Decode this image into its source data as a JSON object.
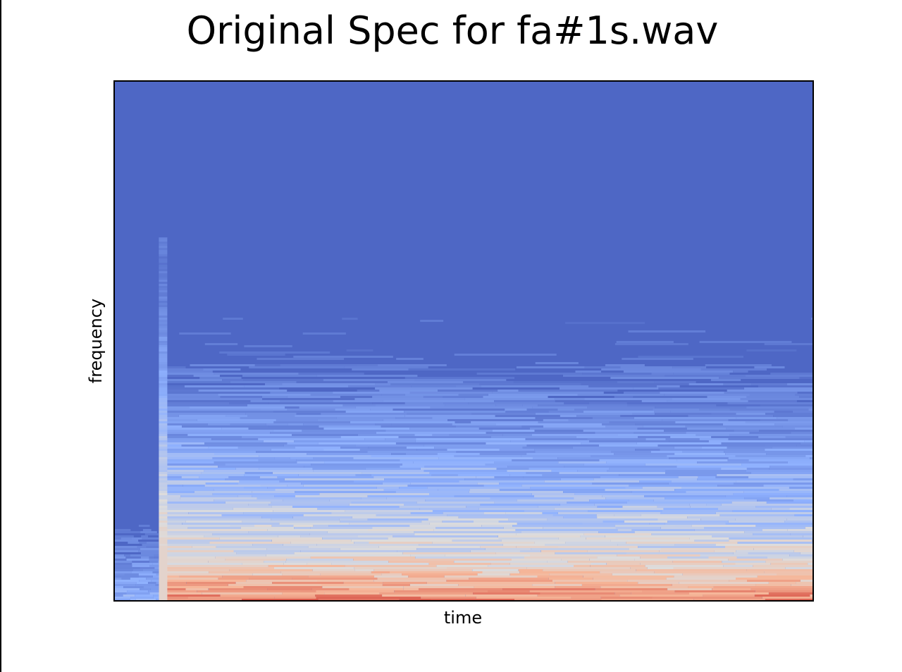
{
  "chart_data": {
    "type": "heatmap",
    "title": "Original Spec for fa#1s.wav",
    "xlabel": "time",
    "ylabel": "frequency",
    "xticks": [],
    "yticks": [],
    "colormap": "coolwarm",
    "colors": {
      "background": "#4e67c5",
      "low": "#4e67c5",
      "mid_low": "#8fb1fe",
      "mid": "#dddcdc",
      "mid_high": "#f6b79a",
      "high": "#d9584a"
    },
    "onset_time_fraction": 0.07,
    "energy_profile_by_frequency_fraction": [
      {
        "freq": 0.0,
        "level": 0.92
      },
      {
        "freq": 0.03,
        "level": 0.8
      },
      {
        "freq": 0.06,
        "level": 0.72
      },
      {
        "freq": 0.09,
        "level": 0.62
      },
      {
        "freq": 0.12,
        "level": 0.58
      },
      {
        "freq": 0.16,
        "level": 0.52
      },
      {
        "freq": 0.2,
        "level": 0.44
      },
      {
        "freq": 0.25,
        "level": 0.38
      },
      {
        "freq": 0.3,
        "level": 0.3
      },
      {
        "freq": 0.35,
        "level": 0.22
      },
      {
        "freq": 0.4,
        "level": 0.14
      },
      {
        "freq": 0.45,
        "level": 0.06
      },
      {
        "freq": 0.5,
        "level": 0.0
      },
      {
        "freq": 1.0,
        "level": 0.0
      }
    ]
  }
}
